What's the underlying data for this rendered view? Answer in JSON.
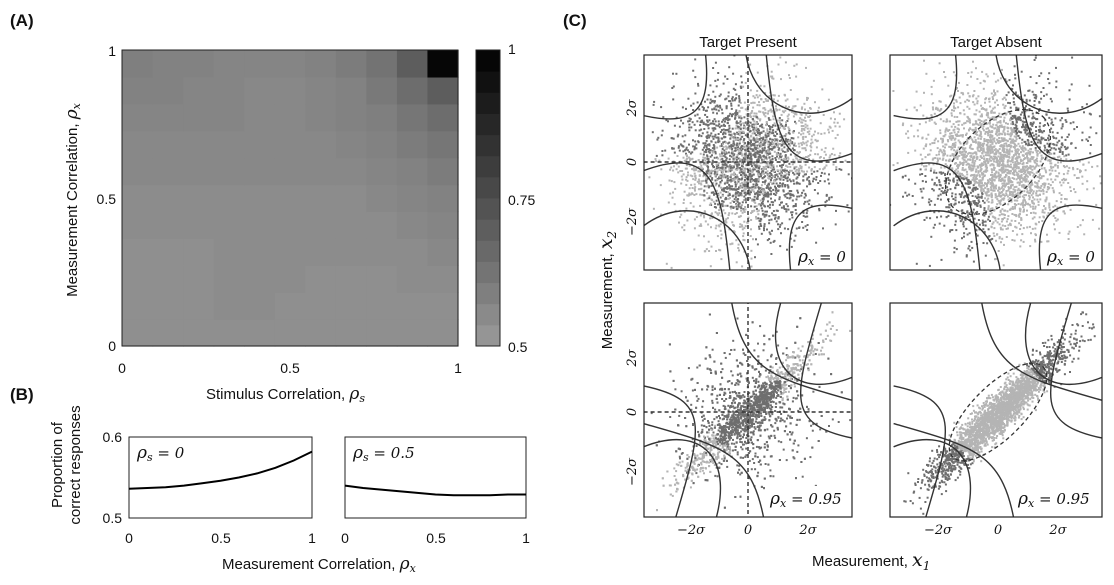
{
  "figure": {
    "panel_labels": [
      "(A)",
      "(B)",
      "(C)"
    ]
  },
  "chart_data": [
    {
      "id": "A",
      "type": "heatmap",
      "xlabel": "Stimulus Correlation, ρs",
      "xlabel_main": "Stimulus Correlation,",
      "xlabel_sym": "ρ",
      "xlabel_sub": "s",
      "ylabel": "Measurement Correlation, ρx",
      "ylabel_main": "Measurement Correlation,",
      "ylabel_sym": "ρ",
      "ylabel_sub": "x",
      "xlim": [
        0,
        1
      ],
      "ylim": [
        0,
        1
      ],
      "xticks": [
        "0",
        "0.5",
        "1"
      ],
      "yticks": [
        "0",
        "0.5",
        "1"
      ],
      "colorbar": {
        "range": [
          0.5,
          1
        ],
        "ticks": [
          "0.5",
          "0.75",
          "1"
        ],
        "colormap": "gray_r"
      },
      "grid_size": 11,
      "rows_note": "row 0 = rho_x 0 (bottom), columns = rho_s 0..1",
      "values": [
        [
          0.54,
          0.54,
          0.54,
          0.54,
          0.54,
          0.54,
          0.54,
          0.54,
          0.54,
          0.54,
          0.54
        ],
        [
          0.54,
          0.54,
          0.54,
          0.55,
          0.55,
          0.54,
          0.54,
          0.54,
          0.54,
          0.54,
          0.54
        ],
        [
          0.54,
          0.54,
          0.54,
          0.55,
          0.55,
          0.55,
          0.54,
          0.54,
          0.54,
          0.55,
          0.55
        ],
        [
          0.54,
          0.54,
          0.54,
          0.55,
          0.55,
          0.55,
          0.55,
          0.55,
          0.55,
          0.55,
          0.56
        ],
        [
          0.55,
          0.55,
          0.55,
          0.55,
          0.55,
          0.55,
          0.55,
          0.55,
          0.55,
          0.56,
          0.57
        ],
        [
          0.55,
          0.55,
          0.55,
          0.55,
          0.55,
          0.55,
          0.55,
          0.55,
          0.56,
          0.57,
          0.58
        ],
        [
          0.56,
          0.56,
          0.56,
          0.56,
          0.56,
          0.56,
          0.56,
          0.56,
          0.57,
          0.58,
          0.6
        ],
        [
          0.56,
          0.56,
          0.56,
          0.56,
          0.56,
          0.56,
          0.56,
          0.57,
          0.58,
          0.6,
          0.62
        ],
        [
          0.57,
          0.57,
          0.57,
          0.57,
          0.56,
          0.56,
          0.57,
          0.58,
          0.59,
          0.62,
          0.65
        ],
        [
          0.58,
          0.58,
          0.57,
          0.57,
          0.56,
          0.56,
          0.57,
          0.58,
          0.61,
          0.65,
          0.7
        ],
        [
          0.59,
          0.58,
          0.58,
          0.57,
          0.57,
          0.57,
          0.58,
          0.6,
          0.63,
          0.7,
          0.98
        ]
      ]
    },
    {
      "id": "B1",
      "type": "line",
      "annotation": "ρs = 0",
      "annotation_sym": "ρ",
      "annotation_sub": "s",
      "annotation_rest": " = 0",
      "ylabel": "Proportion of correct responses",
      "ylabel_line1": "Proportion of",
      "ylabel_line2": "correct responses",
      "xlim": [
        0,
        1
      ],
      "ylim": [
        0.5,
        0.6
      ],
      "xticks": [
        "0",
        "0.5",
        "1"
      ],
      "yticks": [
        "0.5",
        "0.6"
      ],
      "x": [
        0,
        0.1,
        0.2,
        0.3,
        0.4,
        0.5,
        0.6,
        0.7,
        0.8,
        0.9,
        1.0
      ],
      "y": [
        0.536,
        0.537,
        0.538,
        0.54,
        0.543,
        0.546,
        0.55,
        0.555,
        0.562,
        0.571,
        0.582
      ]
    },
    {
      "id": "B2",
      "type": "line",
      "annotation": "ρs = 0.5",
      "annotation_sym": "ρ",
      "annotation_sub": "s",
      "annotation_rest": " = 0.5",
      "xlabel": "Measurement Correlation, ρx",
      "xlabel_main": "Measurement Correlation,",
      "xlabel_sym": "ρ",
      "xlabel_sub": "x",
      "xlim": [
        0,
        1
      ],
      "ylim": [
        0.5,
        0.6
      ],
      "xticks": [
        "0",
        "0.5",
        "1"
      ],
      "x": [
        0,
        0.1,
        0.2,
        0.3,
        0.4,
        0.5,
        0.6,
        0.7,
        0.8,
        0.9,
        1.0
      ],
      "y": [
        0.54,
        0.537,
        0.535,
        0.533,
        0.531,
        0.529,
        0.528,
        0.528,
        0.528,
        0.529,
        0.529
      ]
    },
    {
      "id": "C",
      "type": "scatter",
      "column_titles": [
        "Target Present",
        "Target Absent"
      ],
      "xlabel": "Measurement, x1",
      "xlabel_main": "Measurement,",
      "xlabel_sym": "x",
      "xlabel_sub": "1",
      "ylabel": "Measurement, x2",
      "ylabel_main": "Measurement,",
      "ylabel_sym": "x",
      "ylabel_sub": "2",
      "xticks": [
        "−2σ",
        "0",
        "2σ"
      ],
      "yticks": [
        "−2σ",
        "0",
        "2σ"
      ],
      "subplots": [
        {
          "column": "Target Present",
          "rho_x_label": "ρx = 0",
          "rho_sym": "ρ",
          "rho_sub": "x",
          "rho_rest": " = 0",
          "rho": 0,
          "target": "present"
        },
        {
          "column": "Target Absent",
          "rho_x_label": "ρx = 0",
          "rho_sym": "ρ",
          "rho_sub": "x",
          "rho_rest": " = 0",
          "rho": 0,
          "target": "absent"
        },
        {
          "column": "Target Present",
          "rho_x_label": "ρx = 0.95",
          "rho_sym": "ρ",
          "rho_sub": "x",
          "rho_rest": " = 0.95",
          "rho": 0.95,
          "target": "present"
        },
        {
          "column": "Target Absent",
          "rho_x_label": "ρx = 0.95",
          "rho_sym": "ρ",
          "rho_sub": "x",
          "rho_rest": " = 0.95",
          "rho": 0.95,
          "target": "absent"
        }
      ],
      "colors": {
        "light": "#b4b4b4",
        "dark": "#6e6e6e",
        "boundary": "#333333"
      }
    }
  ]
}
